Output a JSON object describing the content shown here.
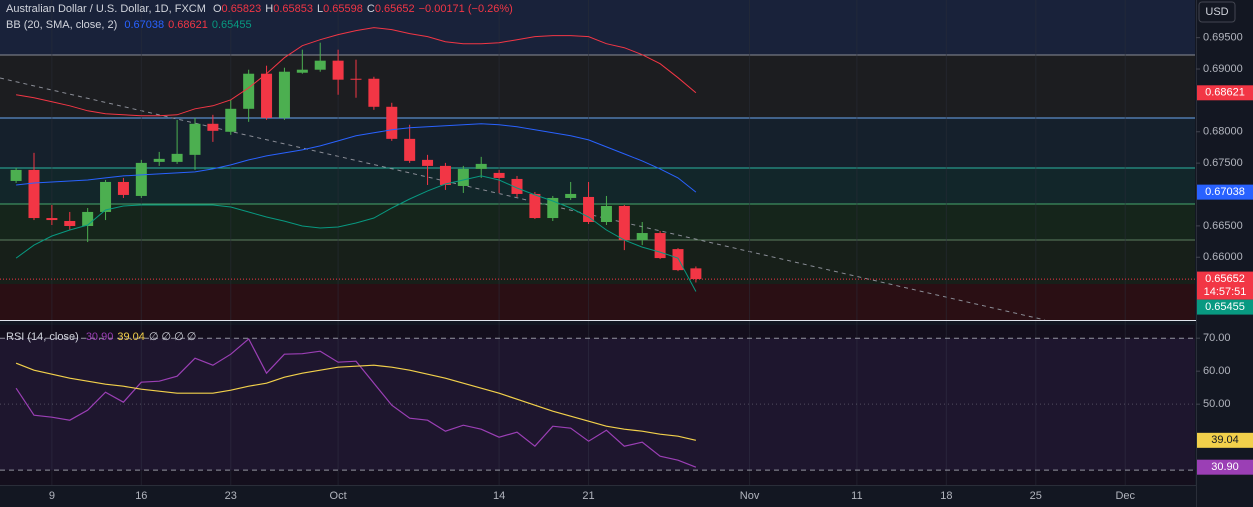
{
  "chart_data": [
    {
      "type": "candlestick",
      "title": "Australian Dollar / U.S. Dollar, 1D, FXCM",
      "ohlc_labels": [
        {
          "key": "O",
          "value": "0.65823"
        },
        {
          "key": "H",
          "value": "0.65853"
        },
        {
          "key": "L",
          "value": "0.65598"
        },
        {
          "key": "C",
          "value": "0.65652"
        }
      ],
      "change": "−0.00171 (−0.26%)",
      "indicator": "BB (20, SMA, close, 2)",
      "countdown": "14:57:51",
      "axis_unit": "USD",
      "up_color": "#4caf50",
      "down_color": "#f23645",
      "open": [
        0.67216,
        0.67392,
        0.66625,
        0.66578,
        0.66498,
        0.66722,
        0.672,
        0.66977,
        0.6752,
        0.6752,
        0.67632,
        0.68127,
        0.68,
        0.68366,
        0.68925,
        0.68222,
        0.68941,
        0.68989,
        0.69133,
        0.68845,
        0.68845,
        0.68398,
        0.67887,
        0.67552,
        0.67456,
        0.67136,
        0.67408,
        0.67344,
        0.67248,
        0.67009,
        0.66625,
        0.66945,
        0.66961,
        0.66562,
        0.66817,
        0.66274,
        0.66386,
        0.6613,
        0.65823
      ],
      "high": [
        0.67424,
        0.67664,
        0.66833,
        0.66722,
        0.66785,
        0.67232,
        0.67264,
        0.67552,
        0.67679,
        0.6819,
        0.68222,
        0.6827,
        0.6851,
        0.68989,
        0.69053,
        0.69021,
        0.69308,
        0.6942,
        0.69308,
        0.69149,
        0.68877,
        0.68462,
        0.68111,
        0.67632,
        0.67504,
        0.67456,
        0.676,
        0.67392,
        0.67296,
        0.67041,
        0.66977,
        0.672,
        0.672,
        0.66977,
        0.66833,
        0.66562,
        0.66418,
        0.66146,
        0.65853
      ],
      "low": [
        0.67184,
        0.66593,
        0.66514,
        0.66434,
        0.66242,
        0.66593,
        0.66945,
        0.66945,
        0.67456,
        0.67488,
        0.67392,
        0.67839,
        0.67951,
        0.68158,
        0.6819,
        0.6819,
        0.68925,
        0.68957,
        0.6859,
        0.68542,
        0.6835,
        0.67855,
        0.67504,
        0.67152,
        0.67073,
        0.67025,
        0.67264,
        0.67025,
        0.66961,
        0.66609,
        0.66578,
        0.66913,
        0.6653,
        0.66514,
        0.66114,
        0.66194,
        0.65971,
        0.65779,
        0.65598
      ],
      "close": [
        0.67392,
        0.66625,
        0.66593,
        0.66498,
        0.66722,
        0.672,
        0.66993,
        0.67504,
        0.67568,
        0.67648,
        0.68127,
        0.68015,
        0.68366,
        0.68925,
        0.68222,
        0.68957,
        0.68989,
        0.69133,
        0.6883,
        0.6883,
        0.68398,
        0.67887,
        0.67536,
        0.67456,
        0.67152,
        0.67408,
        0.67488,
        0.67264,
        0.67009,
        0.66625,
        0.66945,
        0.67009,
        0.66562,
        0.66817,
        0.66274,
        0.66386,
        0.65987,
        0.65795,
        0.65652
      ],
      "series": [
        {
          "color": "#2962ff",
          "last_label": "0.67038",
          "values": [
            0.67152,
            0.67184,
            0.672,
            0.67216,
            0.67232,
            0.67264,
            0.67296,
            0.67312,
            0.67328,
            0.67344,
            0.6736,
            0.67408,
            0.67472,
            0.67552,
            0.67616,
            0.67663,
            0.67711,
            0.67775,
            0.67855,
            0.67935,
            0.67983,
            0.68031,
            0.68063,
            0.68079,
            0.68095,
            0.68111,
            0.68127,
            0.68111,
            0.68079,
            0.68031,
            0.67983,
            0.67935,
            0.67871,
            0.67759,
            0.67647,
            0.67536,
            0.67408,
            0.67264,
            0.67038
          ]
        },
        {
          "color": "#f23645",
          "last_label": "0.68621",
          "values": [
            0.6859,
            0.68542,
            0.68478,
            0.68414,
            0.68334,
            0.68286,
            0.6827,
            0.68254,
            0.68254,
            0.6827,
            0.68366,
            0.68414,
            0.6851,
            0.68701,
            0.68925,
            0.69181,
            0.69372,
            0.69468,
            0.69548,
            0.69612,
            0.6966,
            0.69628,
            0.69564,
            0.69516,
            0.69436,
            0.69404,
            0.69404,
            0.6942,
            0.69468,
            0.69516,
            0.69532,
            0.69532,
            0.69516,
            0.69404,
            0.6934,
            0.69229,
            0.69085,
            0.68861,
            0.68621
          ]
        },
        {
          "color": "#089981",
          "last_label": "0.65455",
          "values": [
            0.65987,
            0.66194,
            0.66338,
            0.66434,
            0.66514,
            0.66753,
            0.66817,
            0.66833,
            0.66833,
            0.66833,
            0.66833,
            0.66833,
            0.66801,
            0.66721,
            0.66641,
            0.66577,
            0.66498,
            0.66466,
            0.66482,
            0.66546,
            0.66625,
            0.66785,
            0.66929,
            0.67057,
            0.67168,
            0.67232,
            0.67296,
            0.67232,
            0.67104,
            0.66993,
            0.66897,
            0.66785,
            0.66641,
            0.66434,
            0.66274,
            0.66162,
            0.66082,
            0.65987,
            0.65455
          ]
        }
      ],
      "xlim": [
        -0.9,
        65.9
      ],
      "xticks": [
        {
          "value": 2,
          "label": "9"
        },
        {
          "value": 7,
          "label": "16"
        },
        {
          "value": 12,
          "label": "23"
        },
        {
          "value": 18,
          "label": "Oct"
        },
        {
          "value": 27,
          "label": "14"
        },
        {
          "value": 32,
          "label": "21"
        },
        {
          "value": 41,
          "label": "Nov"
        },
        {
          "value": 47,
          "label": "11"
        },
        {
          "value": 52,
          "label": "18"
        },
        {
          "value": 57,
          "label": "25"
        },
        {
          "value": 62,
          "label": "Dec"
        }
      ],
      "xgrid": true,
      "ylim": [
        0.65,
        0.701
      ],
      "yticks": [
        {
          "value": 0.695,
          "label": "0.69500"
        },
        {
          "value": 0.69,
          "label": "0.69000"
        },
        {
          "value": 0.68,
          "label": "0.68000"
        },
        {
          "value": 0.675,
          "label": "0.67500"
        },
        {
          "value": 0.665,
          "label": "0.66500"
        },
        {
          "value": 0.66,
          "label": "0.66000"
        }
      ]
    },
    {
      "type": "line",
      "title": "RSI (14, close)",
      "extra": "∅ ∅ ∅ ∅",
      "series": [
        {
          "color": "#9b3fb5",
          "last_label": "30.90",
          "label_text": "#ffffff",
          "values": [
            54.85,
            46.67,
            46.06,
            45.15,
            48.18,
            53.64,
            50.61,
            56.67,
            56.97,
            58.48,
            63.94,
            61.82,
            65.15,
            69.8,
            59.39,
            65.15,
            65.3,
            66.06,
            62.73,
            63.03,
            56.36,
            49.7,
            45.76,
            45.15,
            41.82,
            43.64,
            42.42,
            40,
            41.52,
            37.27,
            43.33,
            42.73,
            38.79,
            42.12,
            37.27,
            38.48,
            34.24,
            33.03,
            30.9
          ]
        },
        {
          "color": "#f2d04b",
          "last_label": "39.04",
          "label_text": "#131722",
          "values": [
            62.42,
            60.3,
            59.09,
            57.88,
            56.97,
            56.06,
            55.45,
            54.55,
            53.94,
            53.33,
            53.33,
            53.33,
            54.24,
            55.45,
            56.36,
            58.18,
            59.39,
            60.3,
            61.21,
            61.52,
            61.82,
            61.21,
            60.3,
            59.09,
            57.88,
            56.36,
            54.85,
            53.33,
            51.52,
            49.7,
            47.88,
            46.36,
            44.85,
            43.33,
            42.42,
            41.82,
            40.91,
            40.3,
            39.04
          ]
        }
      ],
      "hlines": [
        70,
        50,
        30
      ],
      "xlim": [
        -0.9,
        65.9
      ],
      "ylim": [
        25.5,
        74
      ],
      "yticks": [
        {
          "value": 70,
          "label": "70.00"
        },
        {
          "value": 60,
          "label": "60.00"
        },
        {
          "value": 50,
          "label": "50.00"
        }
      ]
    }
  ]
}
